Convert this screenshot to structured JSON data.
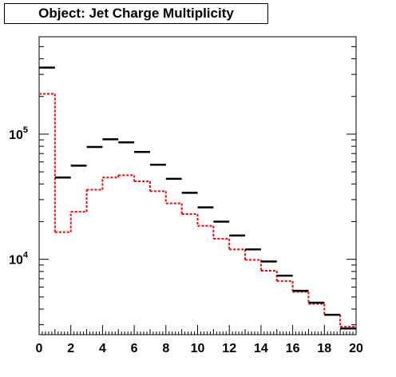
{
  "chart_data": {
    "type": "step",
    "title": "Object: Jet Charge Multiplicity",
    "xlabel": "",
    "ylabel": "",
    "xlim": [
      0,
      20
    ],
    "ylim": [
      2500,
      600000
    ],
    "y_scale": "log",
    "grid": false,
    "legend": "none",
    "x_ticks": [
      0,
      2,
      4,
      6,
      8,
      10,
      12,
      14,
      16,
      18,
      20
    ],
    "x_tick_labels": [
      "0",
      "2",
      "4",
      "6",
      "8",
      "10",
      "12",
      "14",
      "16",
      "18",
      "20"
    ],
    "y_ticks": [
      10000,
      100000
    ],
    "y_tick_labels": [
      {
        "base": "10",
        "exp": "4"
      },
      {
        "base": "10",
        "exp": "5"
      }
    ],
    "bin_edges": [
      0,
      1,
      2,
      3,
      4,
      5,
      6,
      7,
      8,
      9,
      10,
      11,
      12,
      13,
      14,
      15,
      16,
      17,
      18,
      19,
      20
    ],
    "series": [
      {
        "style": "markers",
        "color": "#000000",
        "values": [
          340000,
          45000,
          56000,
          79000,
          91000,
          86000,
          72000,
          57000,
          44000,
          34000,
          26000,
          20000,
          15500,
          12000,
          9600,
          7400,
          5600,
          4500,
          3600,
          2800
        ]
      },
      {
        "style": "dashed-step",
        "color": "#ff0000",
        "values": [
          210000,
          16500,
          24000,
          36000,
          45000,
          47000,
          42000,
          35000,
          28000,
          23000,
          18500,
          14600,
          12000,
          9900,
          8100,
          6700,
          5500,
          4400,
          3600,
          2900
        ]
      }
    ]
  }
}
